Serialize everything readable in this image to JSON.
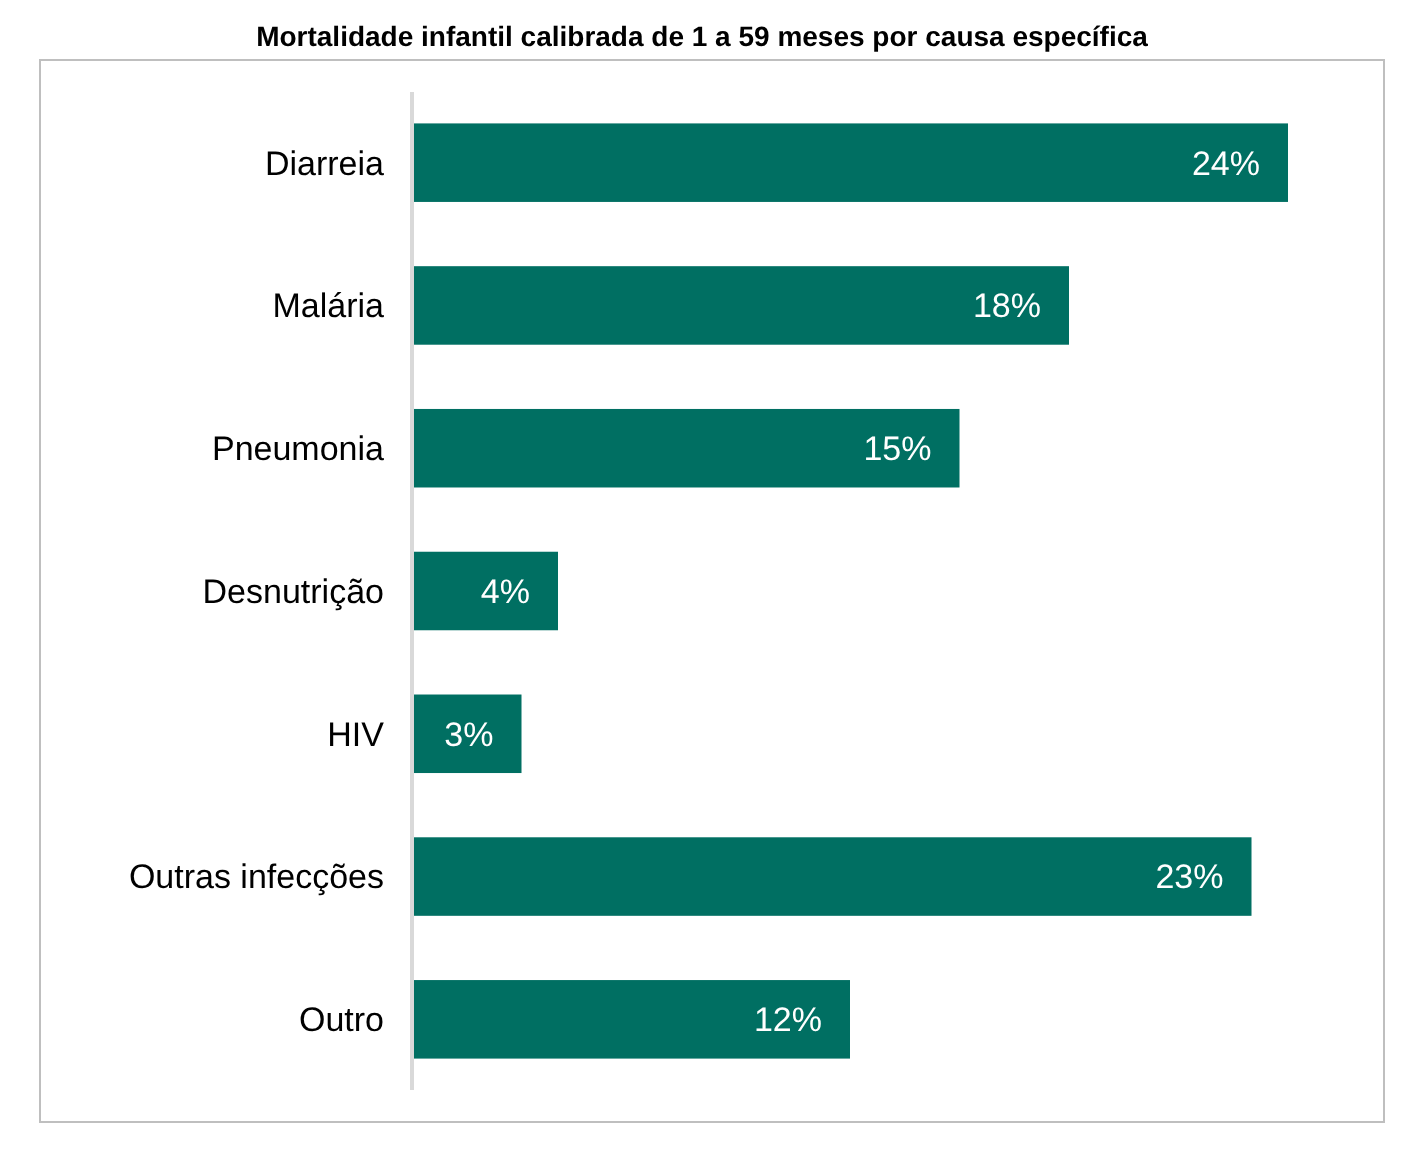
{
  "chart_data": {
    "type": "bar",
    "orientation": "horizontal",
    "title": "Mortalidade infantil calibrada de 1 a 59 meses por causa específica",
    "categories": [
      "Diarreia",
      "Malária",
      "Pneumonia",
      "Desnutrição",
      "HIV",
      "Outras infecções",
      "Outro"
    ],
    "values": [
      24,
      18,
      15,
      4,
      3,
      23,
      12
    ],
    "value_labels": [
      "24%",
      "18%",
      "15%",
      "4%",
      "3%",
      "23%",
      "12%"
    ],
    "color": "#006f62"
  }
}
